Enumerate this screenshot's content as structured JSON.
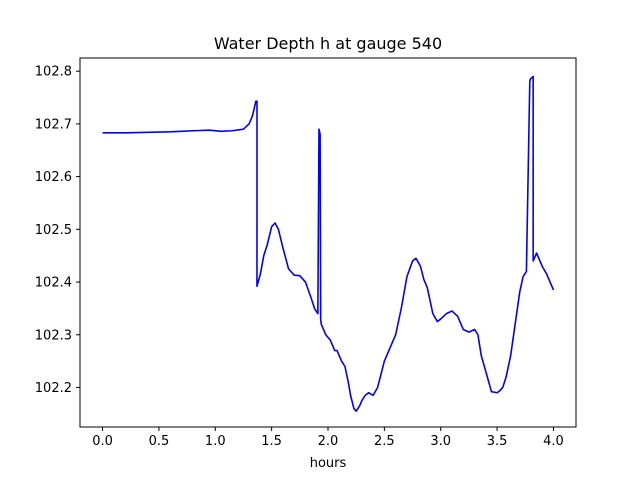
{
  "chart_data": {
    "type": "line",
    "title": "Water Depth h at gauge 540",
    "xlabel": "hours",
    "ylabel": "",
    "xlim": [
      -0.2,
      4.2
    ],
    "ylim": [
      102.125,
      102.825
    ],
    "xticks": [
      0.0,
      0.5,
      1.0,
      1.5,
      2.0,
      2.5,
      3.0,
      3.5,
      4.0
    ],
    "xtick_labels": [
      "0.0",
      "0.5",
      "1.0",
      "1.5",
      "2.0",
      "2.5",
      "3.0",
      "3.5",
      "4.0"
    ],
    "yticks": [
      102.2,
      102.3,
      102.4,
      102.5,
      102.6,
      102.7,
      102.8
    ],
    "ytick_labels": [
      "102.2",
      "102.3",
      "102.4",
      "102.5",
      "102.6",
      "102.7",
      "102.8"
    ],
    "grid": false,
    "series": [
      {
        "color": "#0000ff",
        "x": [
          0.0,
          0.2,
          0.4,
          0.6,
          0.7,
          0.8,
          0.95,
          1.05,
          1.15,
          1.25,
          1.3,
          1.33,
          1.36,
          1.37,
          1.37,
          1.4,
          1.43,
          1.46,
          1.5,
          1.53,
          1.56,
          1.6,
          1.65,
          1.7,
          1.75,
          1.8,
          1.85,
          1.88,
          1.91,
          1.92,
          1.925,
          1.93,
          1.935,
          1.94,
          1.98,
          2.02,
          2.06,
          2.08,
          2.1,
          2.12,
          2.15,
          2.18,
          2.2,
          2.23,
          2.25,
          2.28,
          2.3,
          2.33,
          2.36,
          2.4,
          2.44,
          2.47,
          2.5,
          2.55,
          2.6,
          2.65,
          2.7,
          2.75,
          2.78,
          2.82,
          2.85,
          2.88,
          2.9,
          2.93,
          2.97,
          3.0,
          3.05,
          3.1,
          3.15,
          3.2,
          3.25,
          3.3,
          3.33,
          3.36,
          3.4,
          3.45,
          3.5,
          3.52,
          3.55,
          3.58,
          3.62,
          3.66,
          3.7,
          3.73,
          3.76,
          3.79,
          3.795,
          3.82,
          3.82,
          3.85,
          3.87,
          3.9,
          3.94,
          3.97,
          4.0
        ],
        "y": [
          102.683,
          102.683,
          102.684,
          102.685,
          102.686,
          102.687,
          102.688,
          102.686,
          102.687,
          102.69,
          102.7,
          102.715,
          102.743,
          102.743,
          102.392,
          102.415,
          102.45,
          102.47,
          102.505,
          102.512,
          102.5,
          102.465,
          102.425,
          102.413,
          102.412,
          102.4,
          102.37,
          102.35,
          102.34,
          102.69,
          102.685,
          102.68,
          102.33,
          102.32,
          102.3,
          102.29,
          102.27,
          102.27,
          102.26,
          102.25,
          102.24,
          102.21,
          102.185,
          102.16,
          102.155,
          102.165,
          102.175,
          102.185,
          102.19,
          102.185,
          102.2,
          102.225,
          102.25,
          102.275,
          102.3,
          102.35,
          102.41,
          102.44,
          102.445,
          102.43,
          102.405,
          102.39,
          102.37,
          102.34,
          102.325,
          102.33,
          102.34,
          102.345,
          102.335,
          102.31,
          102.305,
          102.31,
          102.3,
          102.26,
          102.23,
          102.192,
          102.19,
          102.193,
          102.2,
          102.22,
          102.26,
          102.32,
          102.38,
          102.41,
          102.42,
          102.78,
          102.785,
          102.79,
          102.44,
          102.455,
          102.445,
          102.43,
          102.415,
          102.4,
          102.385
        ]
      }
    ]
  }
}
